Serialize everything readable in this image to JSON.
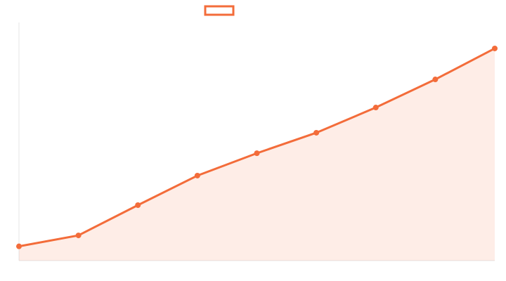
{
  "chart_data": {
    "type": "line",
    "categories": [
      null,
      null,
      null,
      null,
      null,
      null,
      null,
      null,
      null
    ],
    "series": [
      {
        "color": "#f36c3a",
        "values": [
          6,
          10.6,
          23.3,
          35.7,
          45.1,
          53.7,
          64.3,
          76.1,
          89.1
        ]
      }
    ],
    "ylim": [
      0,
      100
    ],
    "area": true,
    "legend": "top"
  }
}
